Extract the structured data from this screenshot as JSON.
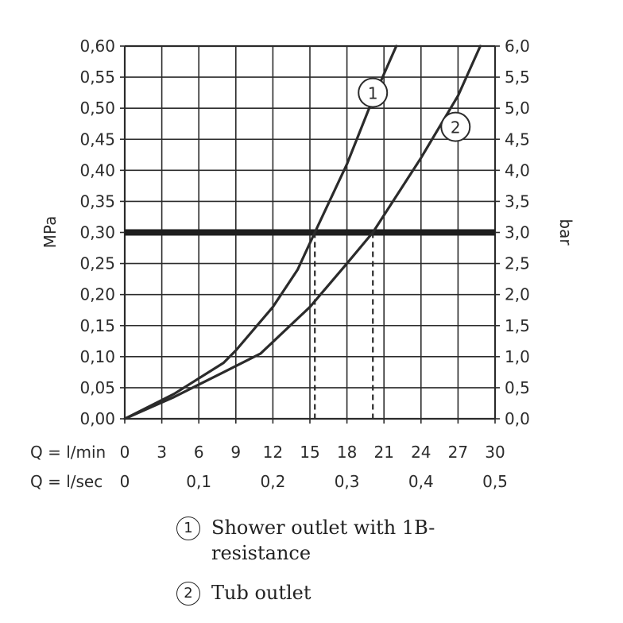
{
  "chart_data": {
    "type": "line",
    "y_left_label": "MPa",
    "y_right_label": "bar",
    "x_row1_label": "Q = l/min",
    "x_row2_label": "Q = l/sec",
    "xlim": [
      0,
      30
    ],
    "ylim": [
      0,
      0.6
    ],
    "x_ticks": [
      "0",
      "3",
      "6",
      "9",
      "12",
      "15",
      "18",
      "21",
      "24",
      "27",
      "30"
    ],
    "x2_ticks": [
      {
        "value": 0,
        "label": "0"
      },
      {
        "value": 6,
        "label": "0,1"
      },
      {
        "value": 12,
        "label": "0,2"
      },
      {
        "value": 18,
        "label": "0,3"
      },
      {
        "value": 24,
        "label": "0,4"
      },
      {
        "value": 30,
        "label": "0,5"
      }
    ],
    "y_left_ticks": [
      "0,00",
      "0,05",
      "0,10",
      "0,15",
      "0,20",
      "0,25",
      "0,30",
      "0,35",
      "0,40",
      "0,45",
      "0,50",
      "0,55",
      "0,60"
    ],
    "y_right_ticks": [
      "0,0",
      "0,5",
      "1,0",
      "1,5",
      "2,0",
      "2,5",
      "3,0",
      "3,5",
      "4,0",
      "4,5",
      "5,0",
      "5,5",
      "6,0"
    ],
    "grid": true,
    "reference_line": {
      "y": 0.3
    },
    "dashed_markers": [
      {
        "x": 15.4,
        "y": 0.3
      },
      {
        "x": 20.1,
        "y": 0.3
      }
    ],
    "series": [
      {
        "label": "1",
        "x": [
          0,
          4,
          8,
          9,
          12,
          14,
          15.4,
          18,
          20,
          22
        ],
        "y": [
          0,
          0.04,
          0.09,
          0.11,
          0.18,
          0.24,
          0.3,
          0.41,
          0.51,
          0.6
        ]
      },
      {
        "label": "2",
        "x": [
          0,
          4,
          8,
          11,
          15,
          18,
          20.1,
          24,
          27,
          28.8
        ],
        "y": [
          0,
          0.035,
          0.075,
          0.105,
          0.18,
          0.25,
          0.3,
          0.42,
          0.52,
          0.6
        ]
      }
    ],
    "series_markers": [
      {
        "label": "1",
        "x": 20.1,
        "y": 0.525
      },
      {
        "label": "2",
        "x": 26.8,
        "y": 0.47
      }
    ]
  },
  "legend": [
    {
      "num": "1",
      "text": "Shower outlet with 1B-resistance"
    },
    {
      "num": "2",
      "text": "Tub outlet"
    }
  ],
  "colors": {
    "line": "#2b2b2b",
    "grid": "#2b2b2b",
    "reference": "#1e1e1e"
  }
}
